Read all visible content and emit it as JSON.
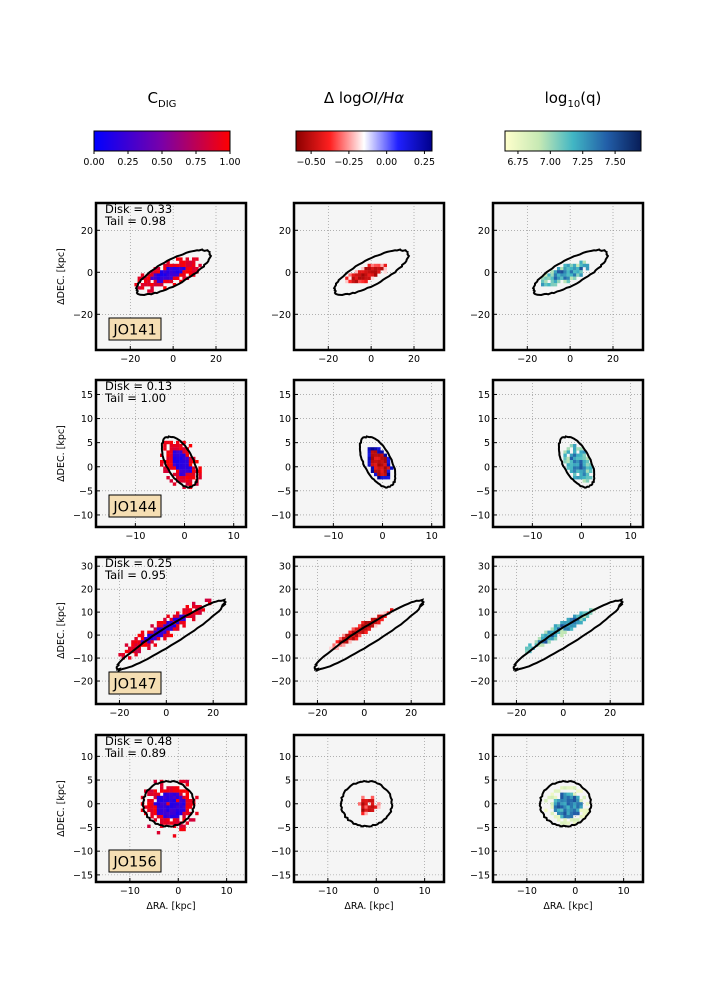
{
  "chart_data": {
    "type": "image-grid",
    "column_titles": [
      {
        "main": "C",
        "sub": "DIG",
        "sup": "",
        "tail": ""
      },
      {
        "main": "Δ log",
        "italic": "OI/Hα",
        "sub": "",
        "sup": ""
      },
      {
        "main": "log",
        "sub": "10",
        "tail": "(q)"
      }
    ],
    "colorbars": [
      {
        "name": "cdig",
        "stops": [
          "#0000ff",
          "#7a00a8",
          "#ff0000"
        ],
        "range": [
          0,
          1
        ],
        "ticks": [
          0,
          0.25,
          0.5,
          0.75,
          1
        ],
        "tick_labels": [
          "0.00",
          "0.25",
          "0.50",
          "0.75",
          "1.00"
        ]
      },
      {
        "name": "oiha",
        "stops": [
          "#8b0000",
          "#ff2020",
          "#ffffff",
          "#2020ff",
          "#00008b"
        ],
        "range": [
          -0.6,
          0.3
        ],
        "ticks": [
          -0.5,
          -0.25,
          0,
          0.25
        ],
        "tick_labels": [
          "−0.50",
          "−0.25",
          "0.00",
          "0.25"
        ]
      },
      {
        "name": "logq",
        "stops": [
          "#ffffcc",
          "#c7e9b4",
          "#41b6c4",
          "#225ea8",
          "#081d58"
        ],
        "range": [
          6.65,
          7.7
        ],
        "ticks": [
          6.75,
          7.0,
          7.25,
          7.5
        ],
        "tick_labels": [
          "6.75",
          "7.00",
          "7.25",
          "7.50"
        ]
      }
    ],
    "xlabel": "ΔRA. [kpc]",
    "ylabel": "ΔDEC. [kpc]",
    "galaxies": [
      {
        "name": "JO141",
        "disk_label": "Disk = 0.33",
        "tail_label": "Tail = 0.98",
        "disk": 0.33,
        "tail": 0.98,
        "xlim": [
          -36,
          34
        ],
        "ylim": [
          -37,
          33
        ],
        "xticks": [
          -20,
          0,
          20
        ],
        "yticks": [
          -20,
          0,
          20
        ]
      },
      {
        "name": "JO144",
        "disk_label": "Disk = 0.13",
        "tail_label": "Tail = 1.00",
        "disk": 0.13,
        "tail": 1.0,
        "xlim": [
          -18,
          12.5
        ],
        "ylim": [
          -12.5,
          18
        ],
        "xticks": [
          -10,
          0,
          10
        ],
        "yticks": [
          -10,
          -5,
          0,
          5,
          10,
          15
        ]
      },
      {
        "name": "JO147",
        "disk_label": "Disk = 0.25",
        "tail_label": "Tail = 0.95",
        "disk": 0.25,
        "tail": 0.95,
        "xlim": [
          -30,
          34
        ],
        "ylim": [
          -30,
          34
        ],
        "xticks": [
          -20,
          0,
          20
        ],
        "yticks": [
          -20,
          -10,
          0,
          10,
          20,
          30
        ]
      },
      {
        "name": "JO156",
        "disk_label": "Disk = 0.48",
        "tail_label": "Tail = 0.89",
        "disk": 0.48,
        "tail": 0.89,
        "xlim": [
          -17,
          14
        ],
        "ylim": [
          -16.5,
          14.5
        ],
        "xticks": [
          -10,
          0,
          10
        ],
        "yticks": [
          -15,
          -10,
          -5,
          0,
          5,
          10
        ]
      }
    ]
  }
}
